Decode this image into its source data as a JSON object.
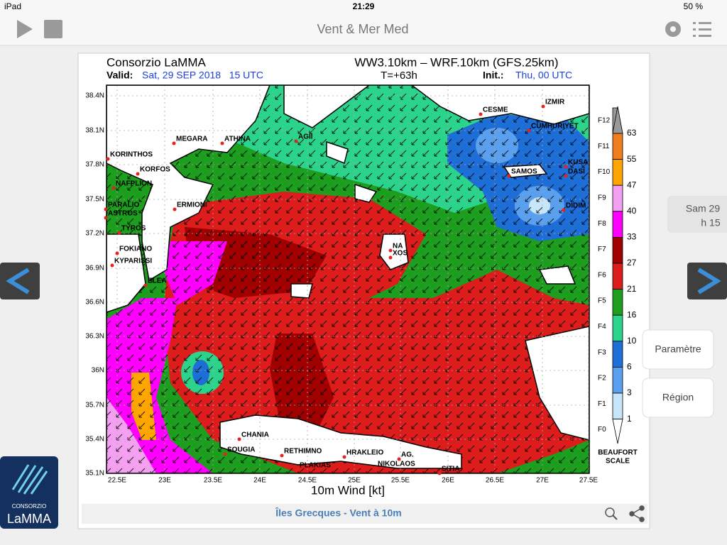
{
  "status_bar": {
    "device": "iPad",
    "time": "21:29",
    "battery": "50 %"
  },
  "nav": {
    "title": "Vent & Mer Med"
  },
  "side": {
    "date": "Sam 29",
    "hour": "h 15",
    "buttons": [
      "Paramètre",
      "Région"
    ]
  },
  "logo": {
    "line1": "CONSORZIO",
    "line2": "LaMMA"
  },
  "map": {
    "header_left": "Consorzio LaMMA",
    "header_center": "WW3.10km – WRF.10km (GFS.25km)",
    "valid_label": "Valid:",
    "valid_value": "Sat, 29 SEP 2018   15 UTC",
    "step": "T=+63h",
    "init_label": "Init.:",
    "init_value": "Thu, 00 UTC",
    "x_label": "10m Wind [kt]",
    "lat_labels": [
      "38.4N",
      "38.1N",
      "37.8N",
      "37.5N",
      "37.2N",
      "36.9N",
      "36.6N",
      "36.3N",
      "36N",
      "35.7N",
      "35.4N",
      "35.1N"
    ],
    "lon_labels": [
      "22.5E",
      "23E",
      "23.5E",
      "24E",
      "24.5E",
      "25E",
      "25.5E",
      "26E",
      "26.5E",
      "27E",
      "27.5E"
    ],
    "places": [
      "CESME",
      "IZMIR",
      "CUMHURIYET",
      "SAMOS",
      "KUSA",
      "DASI",
      "DIDIM",
      "MEGARA",
      "ATHINA",
      "AGII",
      "KORINTHOS",
      "KORFOS",
      "NAFPLION",
      "PARALIO",
      "ASTROS",
      "ERMIONI",
      "TYROS",
      "FOKIANO",
      "KYPARISSI",
      "ELEA",
      "NA",
      "XOS",
      "CHANIA",
      "SOUGIA",
      "RETHIMNO",
      "PLAKIAS",
      "HRAKLEIO",
      "AG.",
      "NIKOLAOS",
      "SITIA"
    ],
    "scale_values": [
      "63",
      "55",
      "47",
      "40",
      "33",
      "27",
      "21",
      "16",
      "10",
      "6",
      "3",
      "1"
    ],
    "beaufort": [
      "F12",
      "F11",
      "F10",
      "F9",
      "F8",
      "F7",
      "F6",
      "F5",
      "F4",
      "F3",
      "F2",
      "F1",
      "F0"
    ],
    "scale_label_1": "BEAUFORT",
    "scale_label_2": "SCALE",
    "caption": "Îles Grecques - Vent à 10m"
  }
}
